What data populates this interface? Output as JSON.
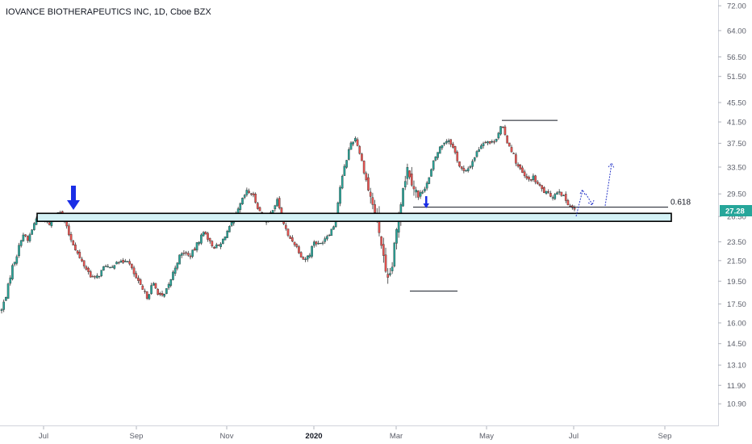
{
  "title": "IOVANCE BIOTHERAPEUTICS INC, 1D, Cboe BZX",
  "chart_data": {
    "type": "candlestick",
    "title": "IOVANCE BIOTHERAPEUTICS INC, 1D, Cboe BZX",
    "y_scale": "log",
    "ylim": [
      9.8,
      74
    ],
    "y_ticks": [
      "72.00",
      "64.00",
      "56.50",
      "51.50",
      "45.50",
      "41.50",
      "37.50",
      "33.50",
      "29.50",
      "26.50",
      "23.50",
      "21.50",
      "19.50",
      "17.50",
      "16.00",
      "14.50",
      "13.10",
      "11.90",
      "10.90"
    ],
    "x_ticks": [
      {
        "label": "Jul",
        "bold": false
      },
      {
        "label": "Sep",
        "bold": false
      },
      {
        "label": "Nov",
        "bold": false
      },
      {
        "label": "2020",
        "bold": true
      },
      {
        "label": "Mar",
        "bold": false
      },
      {
        "label": "May",
        "bold": false
      },
      {
        "label": "Jul",
        "bold": false
      },
      {
        "label": "Sep",
        "bold": false
      }
    ],
    "last_price": "27.28",
    "up_color": "#26a69a",
    "down_color": "#ef5350",
    "path": [
      [
        0,
        17.0
      ],
      [
        1,
        18.5
      ],
      [
        2,
        20.8
      ],
      [
        3,
        22.2
      ],
      [
        4,
        24.5
      ],
      [
        5,
        23.6
      ],
      [
        6,
        25.2
      ],
      [
        7,
        26.8
      ],
      [
        8,
        26.2
      ],
      [
        9,
        25.5
      ],
      [
        10,
        26.3
      ],
      [
        11,
        27.5
      ],
      [
        12,
        26.0
      ],
      [
        13,
        24.2
      ],
      [
        14,
        23.0
      ],
      [
        15,
        21.7
      ],
      [
        16,
        20.9
      ],
      [
        17,
        20.1
      ],
      [
        18,
        19.7
      ],
      [
        19,
        20.3
      ],
      [
        20,
        21.1
      ],
      [
        21,
        20.5
      ],
      [
        22,
        21.6
      ],
      [
        23,
        21.2
      ],
      [
        24,
        21.8
      ],
      [
        25,
        20.6
      ],
      [
        26,
        19.6
      ],
      [
        27,
        18.7
      ],
      [
        28,
        18.1
      ],
      [
        29,
        19.3
      ],
      [
        30,
        18.5
      ],
      [
        31,
        18.0
      ],
      [
        32,
        19.0
      ],
      [
        33,
        20.4
      ],
      [
        34,
        21.8
      ],
      [
        35,
        22.4
      ],
      [
        36,
        21.9
      ],
      [
        37,
        22.6
      ],
      [
        38,
        23.8
      ],
      [
        39,
        24.8
      ],
      [
        40,
        23.4
      ],
      [
        41,
        22.9
      ],
      [
        42,
        23.1
      ],
      [
        43,
        24.4
      ],
      [
        44,
        25.3
      ],
      [
        45,
        26.6
      ],
      [
        46,
        28.3
      ],
      [
        47,
        29.8
      ],
      [
        48,
        29.6
      ],
      [
        49,
        28.1
      ],
      [
        50,
        26.4
      ],
      [
        51,
        25.7
      ],
      [
        52,
        27.5
      ],
      [
        53,
        28.6
      ],
      [
        54,
        26.0
      ],
      [
        55,
        24.1
      ],
      [
        56,
        23.6
      ],
      [
        57,
        22.6
      ],
      [
        58,
        21.6
      ],
      [
        59,
        22.0
      ],
      [
        60,
        23.6
      ],
      [
        61,
        23.1
      ],
      [
        62,
        23.9
      ],
      [
        63,
        24.6
      ],
      [
        64,
        25.6
      ],
      [
        65,
        30.5
      ],
      [
        66,
        34.0
      ],
      [
        67,
        37.5
      ],
      [
        68,
        38.5
      ],
      [
        69,
        35.0
      ],
      [
        70,
        31.5
      ],
      [
        71,
        28.5
      ],
      [
        72,
        26.5
      ],
      [
        73,
        23.0
      ],
      [
        74,
        19.0
      ],
      [
        75,
        21.0
      ],
      [
        76,
        25.5
      ],
      [
        77,
        30.5
      ],
      [
        78,
        33.5
      ],
      [
        79,
        31.0
      ],
      [
        80,
        29.0
      ],
      [
        81,
        30.2
      ],
      [
        82,
        31.5
      ],
      [
        83,
        34.5
      ],
      [
        84,
        36.5
      ],
      [
        85,
        37.8
      ],
      [
        86,
        38.2
      ],
      [
        87,
        36.0
      ],
      [
        88,
        33.5
      ],
      [
        89,
        32.5
      ],
      [
        90,
        33.8
      ],
      [
        91,
        35.5
      ],
      [
        92,
        37.2
      ],
      [
        93,
        38.1
      ],
      [
        94,
        37.4
      ],
      [
        95,
        38.6
      ],
      [
        96,
        40.8
      ],
      [
        97,
        38.0
      ],
      [
        98,
        36.2
      ],
      [
        99,
        33.8
      ],
      [
        100,
        32.5
      ],
      [
        101,
        31.4
      ],
      [
        102,
        31.9
      ],
      [
        103,
        30.8
      ],
      [
        104,
        29.9
      ],
      [
        105,
        29.4
      ],
      [
        106,
        29.2
      ],
      [
        107,
        30.2
      ],
      [
        108,
        28.9
      ],
      [
        109,
        28.1
      ],
      [
        110,
        27.28
      ]
    ],
    "annotations": {
      "fib_label": "0.618",
      "zone_low": 25.9,
      "zone_high": 26.9,
      "fib_level": 27.7,
      "top_line": 41.8,
      "bottom_line": 18.6
    }
  }
}
